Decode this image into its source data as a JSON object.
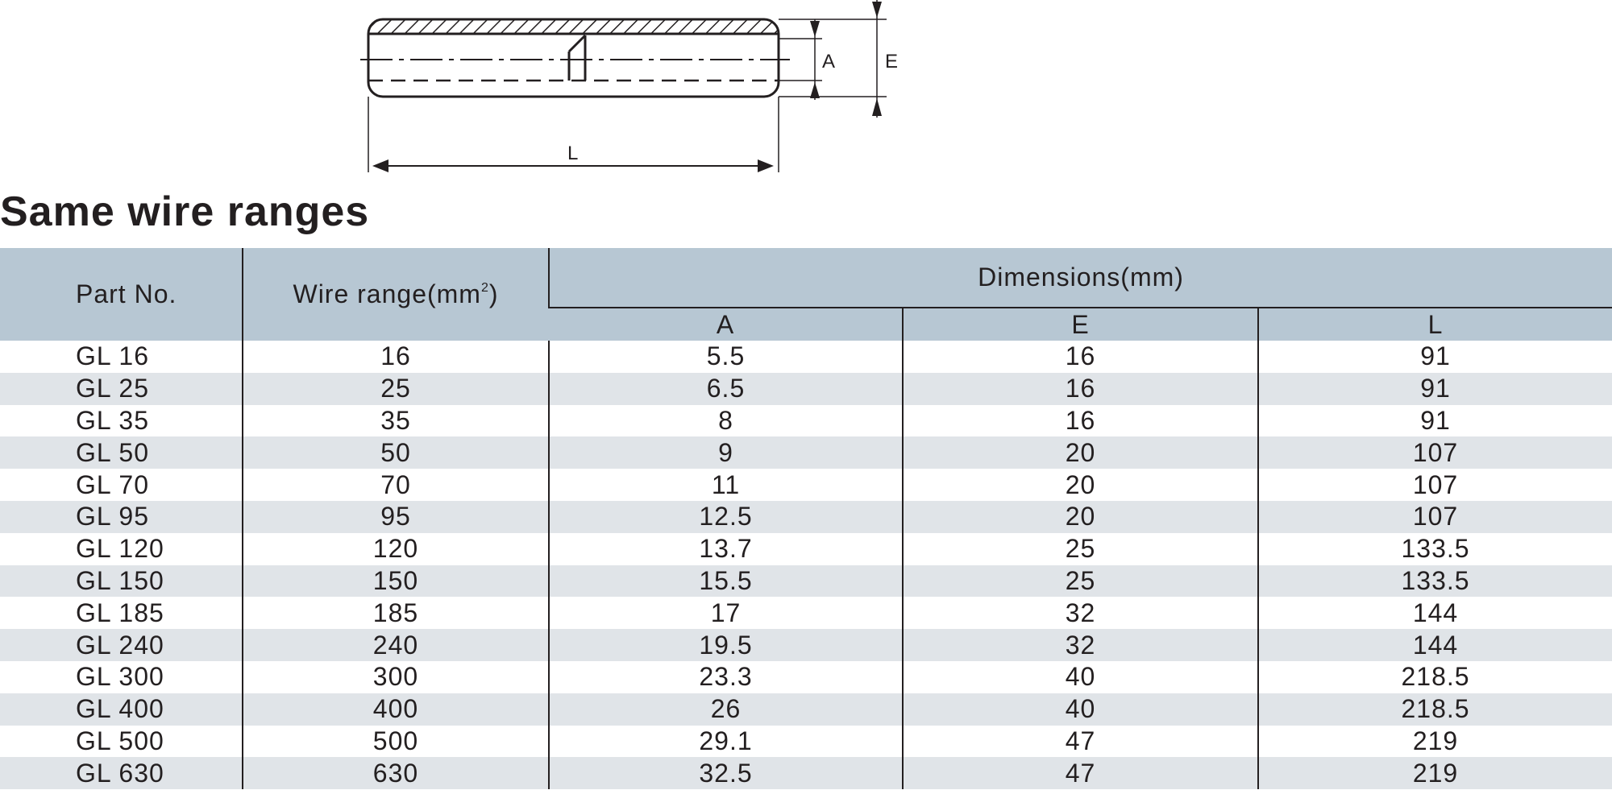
{
  "diagram": {
    "dim_labels": {
      "a": "A",
      "e": "E",
      "l": "L"
    }
  },
  "section_title": "Same wire ranges",
  "table": {
    "header": {
      "part_no": "Part No.",
      "wire_range": "Wire range(mm",
      "wire_range_sup": "2",
      "wire_range_close": ")",
      "dimensions": "Dimensions(mm)",
      "sub": {
        "a": "A",
        "e": "E",
        "l": "L"
      }
    },
    "rows": [
      {
        "part": "GL 16",
        "wire": "16",
        "a": "5.5",
        "e": "16",
        "l": "91"
      },
      {
        "part": "GL 25",
        "wire": "25",
        "a": "6.5",
        "e": "16",
        "l": "91"
      },
      {
        "part": "GL 35",
        "wire": "35",
        "a": "8",
        "e": "16",
        "l": "91"
      },
      {
        "part": "GL 50",
        "wire": "50",
        "a": "9",
        "e": "20",
        "l": "107"
      },
      {
        "part": "GL 70",
        "wire": "70",
        "a": "11",
        "e": "20",
        "l": "107"
      },
      {
        "part": "GL 95",
        "wire": "95",
        "a": "12.5",
        "e": "20",
        "l": "107"
      },
      {
        "part": "GL 120",
        "wire": "120",
        "a": "13.7",
        "e": "25",
        "l": "133.5"
      },
      {
        "part": "GL 150",
        "wire": "150",
        "a": "15.5",
        "e": "25",
        "l": "133.5"
      },
      {
        "part": "GL 185",
        "wire": "185",
        "a": "17",
        "e": "32",
        "l": "144"
      },
      {
        "part": "GL 240",
        "wire": "240",
        "a": "19.5",
        "e": "32",
        "l": "144"
      },
      {
        "part": "GL 300",
        "wire": "300",
        "a": "23.3",
        "e": "40",
        "l": "218.5"
      },
      {
        "part": "GL 400",
        "wire": "400",
        "a": "26",
        "e": "40",
        "l": "218.5"
      },
      {
        "part": "GL 500",
        "wire": "500",
        "a": "29.1",
        "e": "47",
        "l": "219"
      },
      {
        "part": "GL 630",
        "wire": "630",
        "a": "32.5",
        "e": "47",
        "l": "219"
      }
    ]
  }
}
